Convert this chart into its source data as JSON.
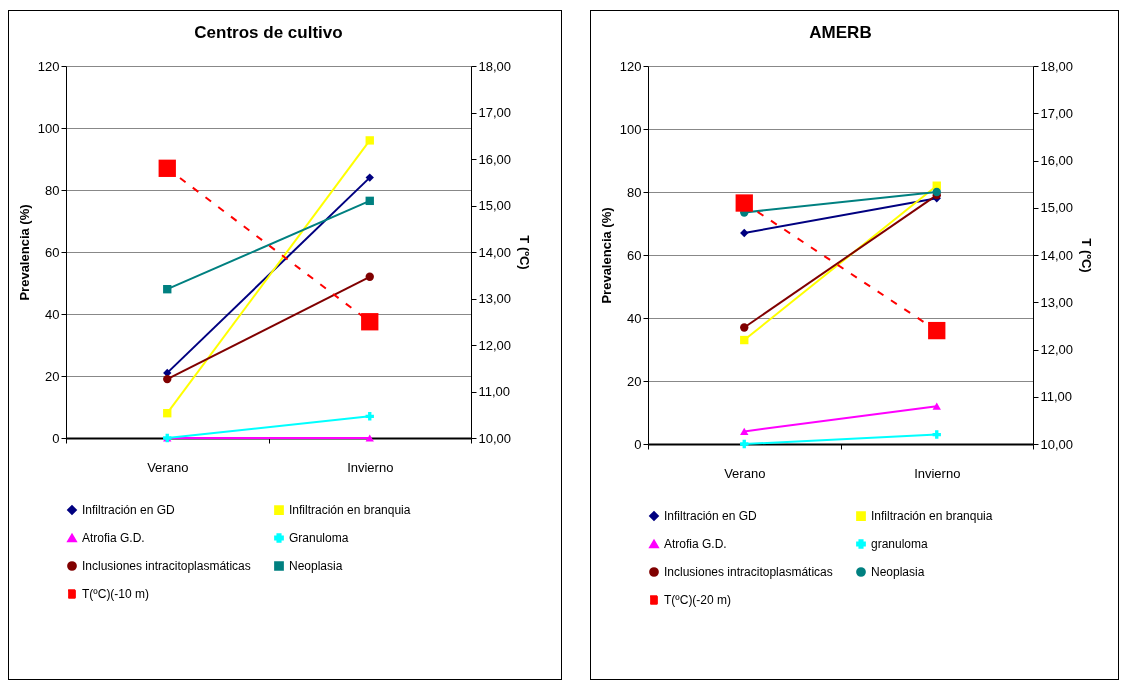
{
  "chart_data": [
    {
      "type": "line",
      "title": "Centros de cultivo",
      "ylabel": "Prevalencia (%)",
      "y2label": "T (ºC)",
      "categories": [
        "Verano",
        "Invierno"
      ],
      "ylim": [
        0,
        120
      ],
      "yticks": [
        0,
        20,
        40,
        60,
        80,
        100,
        120
      ],
      "y2lim": [
        10,
        18
      ],
      "y2ticks": [
        {
          "value": 10,
          "label": "10,00"
        },
        {
          "value": 11,
          "label": "11,00"
        },
        {
          "value": 12,
          "label": "12,00"
        },
        {
          "value": 13,
          "label": "13,00"
        },
        {
          "value": 14,
          "label": "14,00"
        },
        {
          "value": 15,
          "label": "15,00"
        },
        {
          "value": 16,
          "label": "16,00"
        },
        {
          "value": 17,
          "label": "17,00"
        },
        {
          "value": 18,
          "label": "18,00"
        }
      ],
      "grid": "y",
      "legend": "bottom",
      "series": [
        {
          "name": "Infiltración en GD",
          "color": "#000080",
          "marker": "diamond",
          "values": [
            21,
            84
          ]
        },
        {
          "name": "Infiltración en branquia",
          "color": "#ffff00",
          "marker": "square",
          "values": [
            8,
            96
          ]
        },
        {
          "name": "Atrofia G.D.",
          "color": "#ff00ff",
          "marker": "triangle",
          "values": [
            0,
            0
          ]
        },
        {
          "name": "Granuloma",
          "color": "#00ffff",
          "marker": "cross",
          "values": [
            0,
            7
          ]
        },
        {
          "name": "Inclusiones intracitoplasmáticas",
          "color": "#800000",
          "marker": "circle",
          "values": [
            19,
            52
          ]
        },
        {
          "name": "Neoplasia",
          "color": "#008080",
          "marker": "square",
          "values": [
            48,
            76.5
          ]
        },
        {
          "name": "T(ºC)(-10 m)",
          "color": "#ff0000",
          "marker": "square",
          "line_style": "dashed",
          "axis": "y2",
          "values": [
            15.8,
            12.5
          ]
        }
      ]
    },
    {
      "type": "line",
      "title": "AMERB",
      "ylabel": "Prevalencia (%)",
      "y2label": "T (ºC)",
      "categories": [
        "Verano",
        "Invierno"
      ],
      "ylim": [
        0,
        120
      ],
      "yticks": [
        0,
        20,
        40,
        60,
        80,
        100,
        120
      ],
      "y2lim": [
        10,
        18
      ],
      "y2ticks": [
        {
          "value": 10,
          "label": "10,00"
        },
        {
          "value": 11,
          "label": "11,00"
        },
        {
          "value": 12,
          "label": "12,00"
        },
        {
          "value": 13,
          "label": "13,00"
        },
        {
          "value": 14,
          "label": "14,00"
        },
        {
          "value": 15,
          "label": "15,00"
        },
        {
          "value": 16,
          "label": "16,00"
        },
        {
          "value": 17,
          "label": "17,00"
        },
        {
          "value": 18,
          "label": "18,00"
        }
      ],
      "grid": "y",
      "legend": "bottom",
      "series": [
        {
          "name": "Infiltración en GD",
          "color": "#000080",
          "marker": "diamond",
          "values": [
            67,
            78
          ]
        },
        {
          "name": "Infiltración en branquia",
          "color": "#ffff00",
          "marker": "square",
          "values": [
            33,
            82
          ]
        },
        {
          "name": "Atrofia G.D.",
          "color": "#ff00ff",
          "marker": "triangle",
          "values": [
            4,
            12
          ]
        },
        {
          "name": "granuloma",
          "color": "#00ffff",
          "marker": "cross",
          "values": [
            0,
            3
          ]
        },
        {
          "name": "Inclusiones intracitoplasmáticas",
          "color": "#800000",
          "marker": "circle",
          "values": [
            37,
            79
          ]
        },
        {
          "name": "Neoplasia",
          "color": "#008080",
          "marker": "circle",
          "values": [
            73.5,
            80
          ]
        },
        {
          "name": "T(ºC)(-20 m)",
          "color": "#ff0000",
          "marker": "square",
          "line_style": "dashed",
          "axis": "y2",
          "values": [
            15.1,
            12.4
          ]
        }
      ]
    }
  ]
}
